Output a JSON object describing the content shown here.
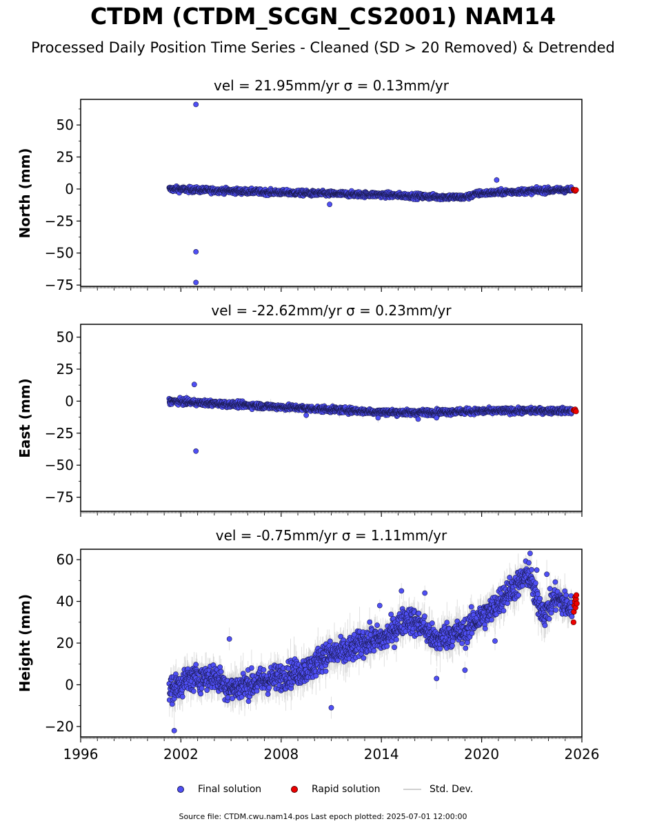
{
  "title": "CTDM (CTDM_SCGN_CS2001) NAM14",
  "subtitle": "Processed Daily Position Time Series - Cleaned (SD > 20 Removed) & Detrended",
  "colors": {
    "final": "#4f4ff5",
    "rapid": "#ee0000",
    "stddev": "#cccccc",
    "edge": "#1a1a50"
  },
  "chart_data": [
    {
      "type": "scatter",
      "title": "vel = 21.95mm/yr   σ = 0.13mm/yr",
      "ylabel": "North (mm)",
      "xlim": [
        1996,
        2026
      ],
      "ylim": [
        -76,
        70
      ],
      "yticks": [
        50,
        25,
        0,
        -25,
        -50,
        -75
      ],
      "ytick_labels": [
        "50",
        "25",
        "0",
        "−25",
        "−50",
        "−75"
      ],
      "series": [
        {
          "name": "Final solution",
          "trend": [
            [
              2001.3,
              0
            ],
            [
              2005,
              -1.5
            ],
            [
              2010,
              -3.5
            ],
            [
              2014,
              -4.5
            ],
            [
              2017,
              -6
            ],
            [
              2019,
              -6.5
            ],
            [
              2019.8,
              -3.5
            ],
            [
              2022,
              -2
            ],
            [
              2025.4,
              -0.5
            ]
          ],
          "x_range": [
            2001.3,
            2025.4
          ],
          "scatter": 1.5,
          "outliers": [
            [
              2002.9,
              66
            ],
            [
              2002.9,
              -49
            ],
            [
              2002.9,
              -73
            ],
            [
              2010.9,
              -12
            ],
            [
              2020.9,
              7
            ]
          ]
        },
        {
          "name": "Rapid solution",
          "points": [
            [
              2025.5,
              -0.5
            ],
            [
              2025.55,
              -1
            ],
            [
              2025.6,
              -1.5
            ],
            [
              2025.65,
              -0.8
            ]
          ]
        }
      ]
    },
    {
      "type": "scatter",
      "title": "vel = -22.62mm/yr   σ = 0.23mm/yr",
      "ylabel": "East (mm)",
      "xlim": [
        1996,
        2026
      ],
      "ylim": [
        -86,
        60
      ],
      "yticks": [
        50,
        25,
        0,
        -25,
        -50,
        -75
      ],
      "ytick_labels": [
        "50",
        "25",
        "0",
        "−25",
        "−50",
        "−75"
      ],
      "series": [
        {
          "name": "Final solution",
          "trend": [
            [
              2001.3,
              0
            ],
            [
              2005,
              -2.5
            ],
            [
              2010,
              -6
            ],
            [
              2014,
              -8.5
            ],
            [
              2016,
              -9
            ],
            [
              2019,
              -8
            ],
            [
              2022,
              -7.5
            ],
            [
              2025.4,
              -7.5
            ]
          ],
          "x_range": [
            2001.3,
            2025.4
          ],
          "scatter": 1.6,
          "outliers": [
            [
              2002.8,
              13
            ],
            [
              2002.9,
              -39
            ],
            [
              2009.5,
              -11
            ],
            [
              2013.8,
              -13
            ],
            [
              2016.2,
              -14
            ],
            [
              2017.3,
              -13
            ]
          ]
        },
        {
          "name": "Rapid solution",
          "points": [
            [
              2025.5,
              -7
            ],
            [
              2025.55,
              -7.5
            ],
            [
              2025.6,
              -6.5
            ],
            [
              2025.65,
              -8
            ]
          ]
        }
      ]
    },
    {
      "type": "scatter",
      "title": "vel = -0.75mm/yr   σ = 1.11mm/yr",
      "ylabel": "Height (mm)",
      "xlim": [
        1996,
        2026
      ],
      "ylim": [
        -25,
        65
      ],
      "xticks": [
        1996,
        2002,
        2008,
        2014,
        2020,
        2026
      ],
      "xtick_labels": [
        "1996",
        "2002",
        "2008",
        "2014",
        "2020",
        "2026"
      ],
      "yticks": [
        60,
        40,
        20,
        0,
        -20
      ],
      "ytick_labels": [
        "60",
        "40",
        "20",
        "0",
        "−20"
      ],
      "series": [
        {
          "name": "Final solution",
          "trend": [
            [
              2001.3,
              -3
            ],
            [
              2002.5,
              3
            ],
            [
              2004,
              4
            ],
            [
              2005,
              -2
            ],
            [
              2007,
              2
            ],
            [
              2008.5,
              5
            ],
            [
              2009.8,
              8
            ],
            [
              2010.5,
              14
            ],
            [
              2012,
              16
            ],
            [
              2013,
              21
            ],
            [
              2014.2,
              22
            ],
            [
              2015.5,
              32
            ],
            [
              2016.5,
              28
            ],
            [
              2017.2,
              21
            ],
            [
              2018,
              24
            ],
            [
              2019,
              25
            ],
            [
              2019.5,
              30
            ],
            [
              2020.5,
              35
            ],
            [
              2021.5,
              44
            ],
            [
              2022.3,
              49
            ],
            [
              2022.8,
              54
            ],
            [
              2023.3,
              40
            ],
            [
              2023.8,
              34
            ],
            [
              2024.4,
              42
            ],
            [
              2025.4,
              36
            ]
          ],
          "x_range": [
            2001.3,
            2025.4
          ],
          "scatter": 4.5,
          "outliers": [
            [
              2001.6,
              -22
            ],
            [
              2004.9,
              22
            ],
            [
              2011,
              -11
            ],
            [
              2013.9,
              38
            ],
            [
              2015.2,
              45
            ],
            [
              2016.6,
              44
            ],
            [
              2017.3,
              3
            ],
            [
              2019,
              7
            ],
            [
              2022.9,
              63
            ],
            [
              2023.3,
              55
            ],
            [
              2023.9,
              53
            ],
            [
              2020.8,
              21
            ]
          ]
        },
        {
          "name": "Rapid solution",
          "points": [
            [
              2025.5,
              30
            ],
            [
              2025.52,
              35
            ],
            [
              2025.55,
              38
            ],
            [
              2025.58,
              40
            ],
            [
              2025.6,
              42
            ],
            [
              2025.62,
              37
            ],
            [
              2025.65,
              41
            ],
            [
              2025.67,
              43
            ],
            [
              2025.7,
              39
            ]
          ]
        }
      ]
    }
  ],
  "legend": {
    "final": "Final solution",
    "rapid": "Rapid solution",
    "stddev": "Std. Dev."
  },
  "footer": "Source file: CTDM.cwu.nam14.pos  Last epoch plotted: 2025-07-01 12:00:00"
}
